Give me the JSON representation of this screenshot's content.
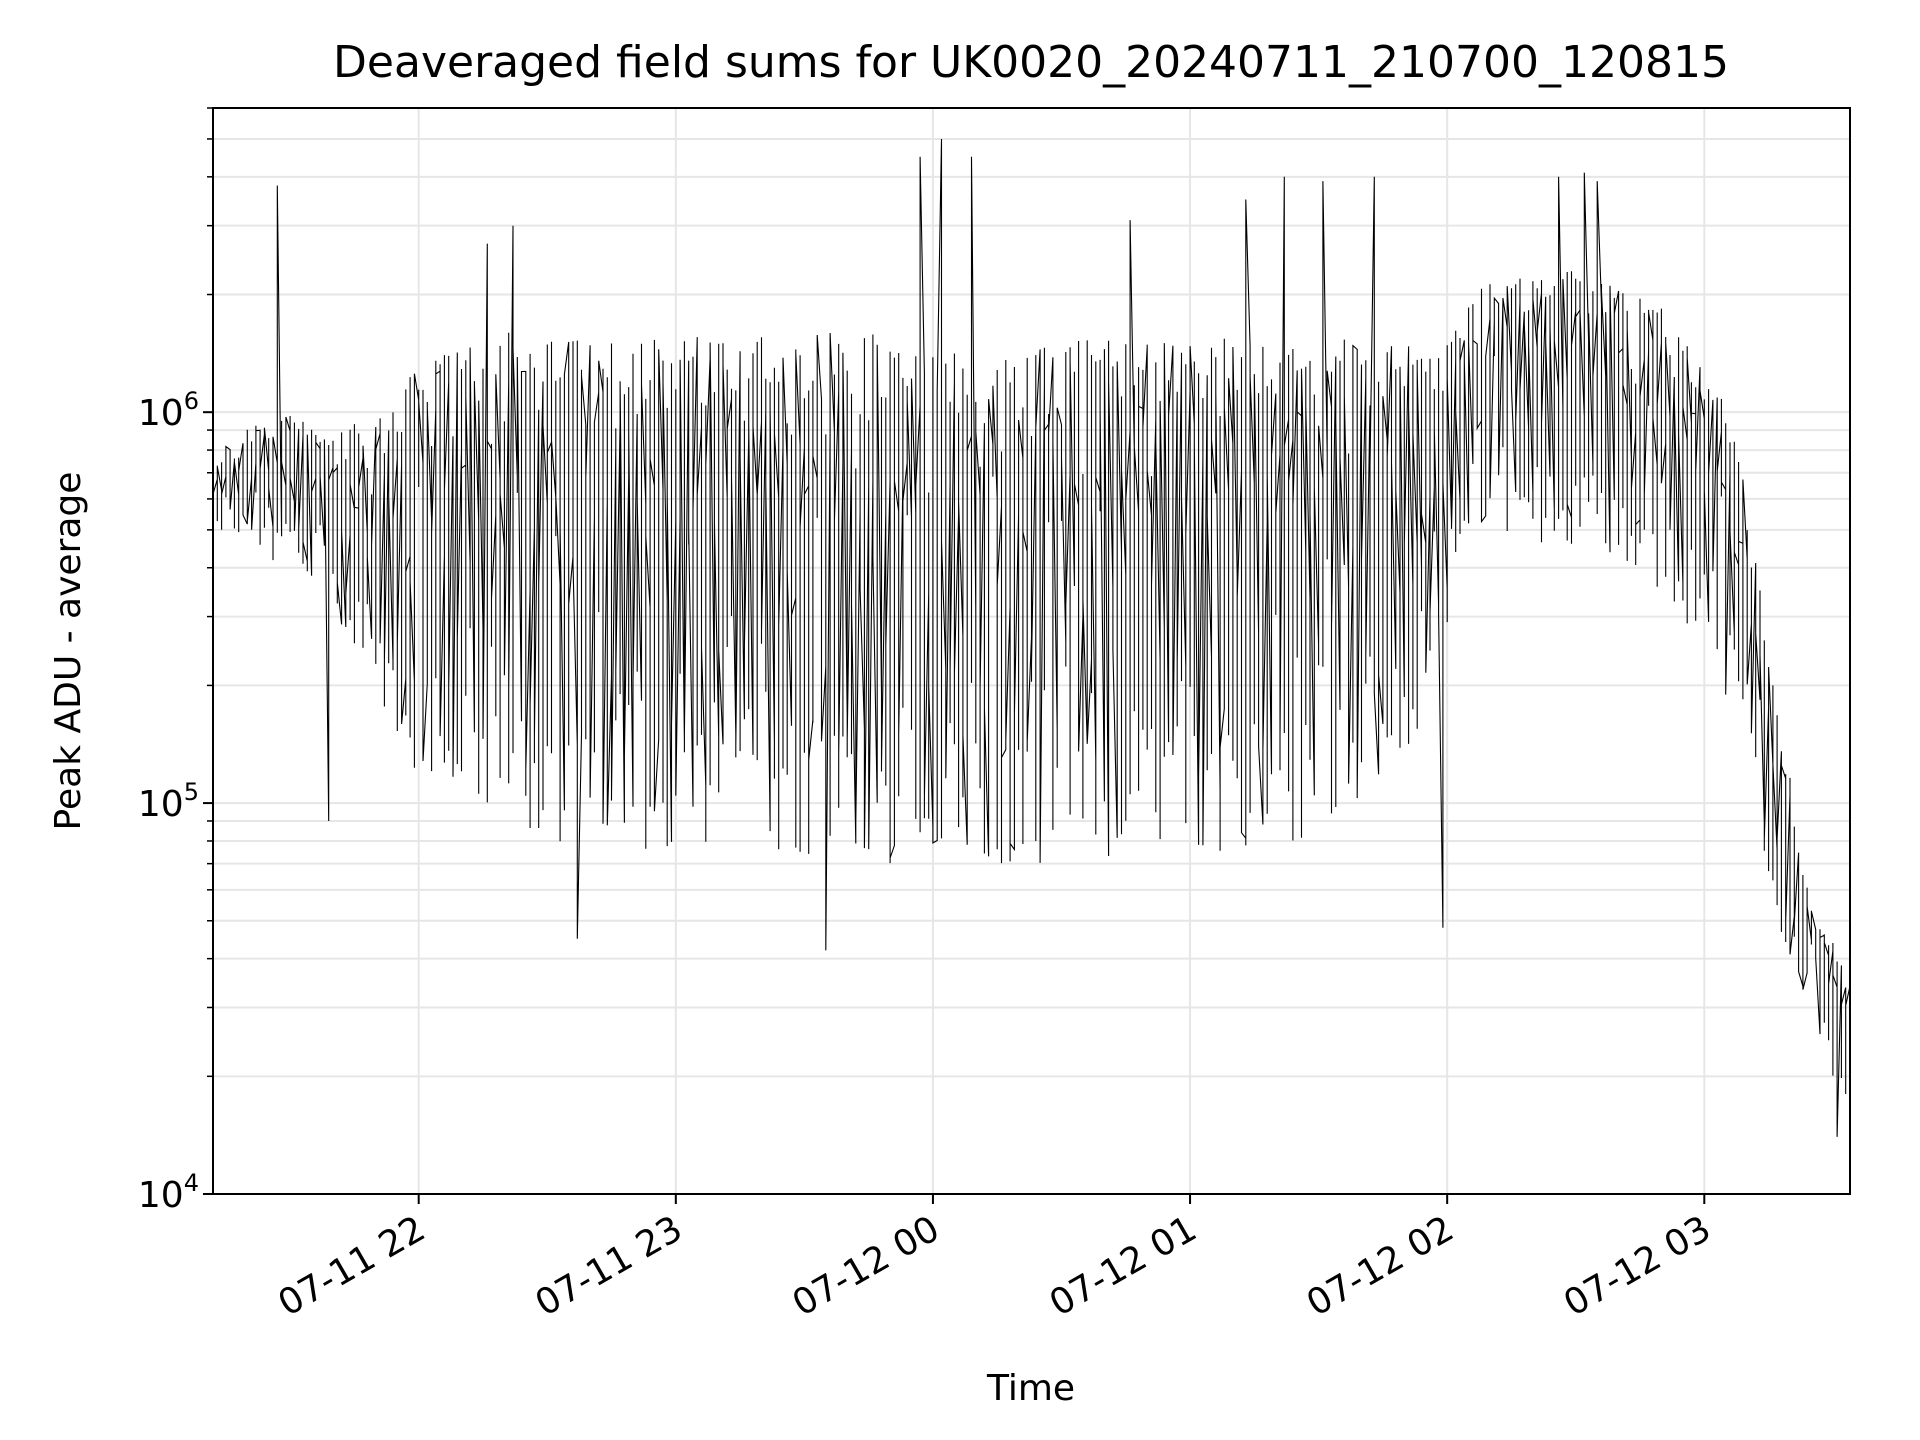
{
  "chart_data": {
    "type": "line",
    "title": "Deaveraged field sums for UK0020_20240711_210700_120815",
    "xlabel": "Time",
    "ylabel": "Peak ADU - average",
    "yscale": "log",
    "ylim": [
      10000,
      6000000
    ],
    "xlim": [
      "2024-07-11 21:12",
      "2024-07-12 03:34"
    ],
    "grid": true,
    "x_tick_labels": [
      "07-11 22",
      "07-11 23",
      "07-12 00",
      "07-12 01",
      "07-12 02",
      "07-12 03"
    ],
    "x_ticks": [
      "2024-07-11 22:00",
      "2024-07-11 23:00",
      "2024-07-12 00:00",
      "2024-07-12 01:00",
      "2024-07-12 02:00",
      "2024-07-12 03:00"
    ],
    "y_ticks": [
      {
        "base": "10",
        "exp": "4",
        "value": 10000
      },
      {
        "base": "10",
        "exp": "5",
        "value": 100000
      },
      {
        "base": "10",
        "exp": "6",
        "value": 1000000
      }
    ],
    "line_color": "#000000",
    "series": [
      {
        "upper_envelope": [
          [
            "2024-07-11 21:12",
            750000
          ],
          [
            "2024-07-11 21:20",
            900000
          ],
          [
            "2024-07-11 21:30",
            1000000
          ],
          [
            "2024-07-11 21:40",
            850000
          ],
          [
            "2024-07-11 21:50",
            1000000
          ],
          [
            "2024-07-11 22:00",
            1300000
          ],
          [
            "2024-07-11 22:10",
            1500000
          ],
          [
            "2024-07-11 22:20",
            1600000
          ],
          [
            "2024-07-11 22:30",
            1600000
          ],
          [
            "2024-07-11 22:45",
            1500000
          ],
          [
            "2024-07-11 23:00",
            1550000
          ],
          [
            "2024-07-11 23:30",
            1600000
          ],
          [
            "2024-07-12 00:00",
            1600000
          ],
          [
            "2024-07-12 00:30",
            1550000
          ],
          [
            "2024-07-12 01:00",
            1550000
          ],
          [
            "2024-07-12 01:30",
            1550000
          ],
          [
            "2024-07-12 02:00",
            1500000
          ],
          [
            "2024-07-12 02:10",
            2200000
          ],
          [
            "2024-07-12 02:30",
            2300000
          ],
          [
            "2024-07-12 02:50",
            1900000
          ],
          [
            "2024-07-12 03:00",
            1300000
          ],
          [
            "2024-07-12 03:05",
            1150000
          ],
          [
            "2024-07-12 03:10",
            700000
          ],
          [
            "2024-07-12 03:15",
            260000
          ],
          [
            "2024-07-12 03:20",
            120000
          ],
          [
            "2024-07-12 03:25",
            55000
          ],
          [
            "2024-07-12 03:30",
            45000
          ],
          [
            "2024-07-12 03:34",
            35000
          ]
        ],
        "lower_envelope": [
          [
            "2024-07-11 21:12",
            480000
          ],
          [
            "2024-07-11 21:20",
            450000
          ],
          [
            "2024-07-11 21:30",
            400000
          ],
          [
            "2024-07-11 21:40",
            300000
          ],
          [
            "2024-07-11 21:50",
            200000
          ],
          [
            "2024-07-11 22:00",
            120000
          ],
          [
            "2024-07-11 22:10",
            100000
          ],
          [
            "2024-07-11 22:20",
            90000
          ],
          [
            "2024-07-11 22:30",
            80000
          ],
          [
            "2024-07-11 23:00",
            75000
          ],
          [
            "2024-07-11 23:30",
            70000
          ],
          [
            "2024-07-12 00:00",
            70000
          ],
          [
            "2024-07-12 00:30",
            70000
          ],
          [
            "2024-07-12 01:00",
            70000
          ],
          [
            "2024-07-12 01:30",
            80000
          ],
          [
            "2024-07-12 01:55",
            150000
          ],
          [
            "2024-07-12 02:05",
            500000
          ],
          [
            "2024-07-12 02:30",
            450000
          ],
          [
            "2024-07-12 02:50",
            350000
          ],
          [
            "2024-07-12 03:00",
            250000
          ],
          [
            "2024-07-12 03:10",
            150000
          ],
          [
            "2024-07-12 03:15",
            70000
          ],
          [
            "2024-07-12 03:20",
            40000
          ],
          [
            "2024-07-12 03:25",
            30000
          ],
          [
            "2024-07-12 03:30",
            20000
          ],
          [
            "2024-07-12 03:34",
            17000
          ]
        ],
        "notable_spikes": [
          [
            "2024-07-11 21:28",
            3800000
          ],
          [
            "2024-07-11 22:16",
            2700000
          ],
          [
            "2024-07-11 22:22",
            3000000
          ],
          [
            "2024-07-11 21:39",
            90000
          ],
          [
            "2024-07-11 22:38",
            45000
          ],
          [
            "2024-07-11 23:36",
            42000
          ],
          [
            "2024-07-11 23:58",
            4500000
          ],
          [
            "2024-07-12 00:02",
            5000000
          ],
          [
            "2024-07-12 00:10",
            4500000
          ],
          [
            "2024-07-12 00:47",
            3100000
          ],
          [
            "2024-07-12 01:14",
            3500000
          ],
          [
            "2024-07-12 01:22",
            4000000
          ],
          [
            "2024-07-12 01:32",
            3900000
          ],
          [
            "2024-07-12 01:43",
            4000000
          ],
          [
            "2024-07-12 01:59",
            48000
          ],
          [
            "2024-07-12 02:27",
            4000000
          ],
          [
            "2024-07-12 02:33",
            4100000
          ],
          [
            "2024-07-12 02:36",
            3900000
          ],
          [
            "2024-07-12 03:32",
            14000
          ]
        ]
      }
    ]
  }
}
